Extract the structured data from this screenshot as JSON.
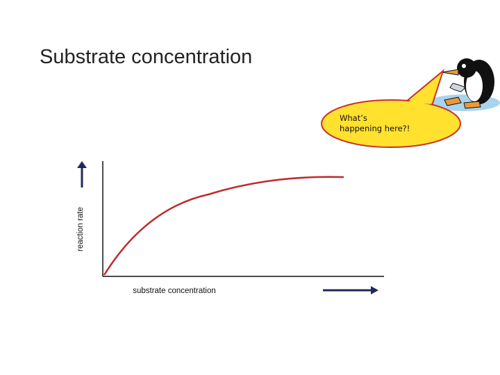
{
  "header": {
    "title": "Substrate concentration"
  },
  "callout": {
    "lines": [
      "What’s",
      "happening here?!"
    ]
  },
  "graph": {
    "y_axis_label": "reaction rate",
    "x_axis_label": "substrate concentration"
  }
}
